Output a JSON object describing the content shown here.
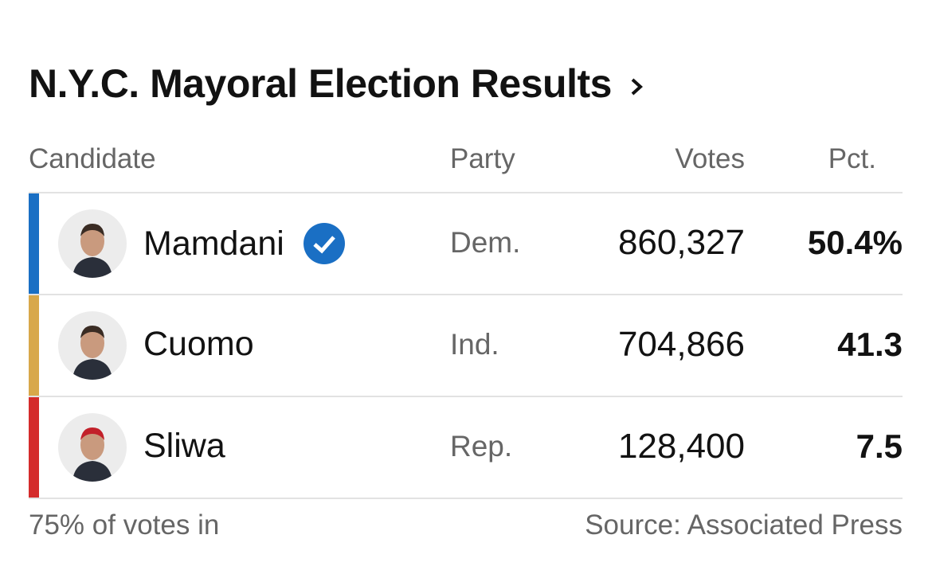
{
  "header": {
    "title": "N.Y.C. Mayoral Election Results"
  },
  "table": {
    "columns": [
      "Candidate",
      "Party",
      "Votes",
      "Pct."
    ],
    "rows": [
      {
        "candidate": "Mamdani",
        "party": "Dem.",
        "votes": "860,327",
        "pct": "50.4%",
        "color": "#1a6fc4",
        "winner": true
      },
      {
        "candidate": "Cuomo",
        "party": "Ind.",
        "votes": "704,866",
        "pct": "41.3",
        "color": "#d8a84a",
        "winner": false
      },
      {
        "candidate": "Sliwa",
        "party": "Rep.",
        "votes": "128,400",
        "pct": "7.5",
        "color": "#d42b2b",
        "winner": false
      }
    ]
  },
  "footer": {
    "note": "75% of votes in",
    "source": "Source: Associated Press"
  }
}
